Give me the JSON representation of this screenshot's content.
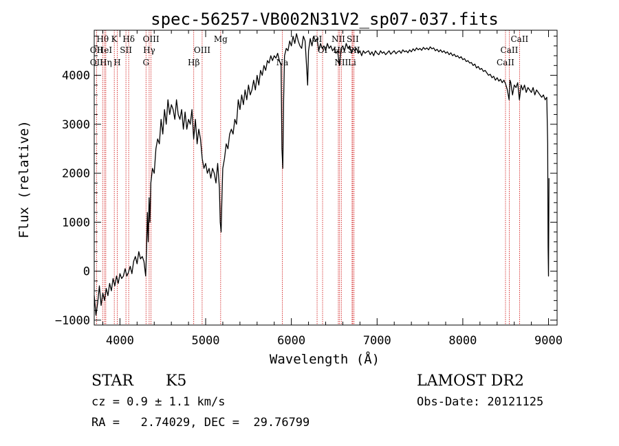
{
  "chart_data": {
    "type": "line",
    "title": "spec-56257-VB002N31V2_sp07-037.fits",
    "xlabel": "Wavelength (Å)",
    "ylabel": "Flux (relative)",
    "xlim": [
      3700,
      9100
    ],
    "ylim": [
      -1100,
      4920
    ],
    "x_ticks": [
      4000,
      5000,
      6000,
      7000,
      8000,
      9000
    ],
    "y_ticks": [
      -1000,
      0,
      1000,
      2000,
      3000,
      4000
    ],
    "series": [
      {
        "name": "flux",
        "color": "#000000",
        "points": [
          [
            3700,
            -500
          ],
          [
            3720,
            -900
          ],
          [
            3740,
            -650
          ],
          [
            3760,
            -300
          ],
          [
            3780,
            -700
          ],
          [
            3800,
            -450
          ],
          [
            3820,
            -600
          ],
          [
            3840,
            -350
          ],
          [
            3860,
            -500
          ],
          [
            3880,
            -250
          ],
          [
            3900,
            -400
          ],
          [
            3920,
            -150
          ],
          [
            3940,
            -300
          ],
          [
            3960,
            -100
          ],
          [
            3980,
            -250
          ],
          [
            4000,
            -50
          ],
          [
            4020,
            -150
          ],
          [
            4040,
            -100
          ],
          [
            4060,
            50
          ],
          [
            4080,
            -100
          ],
          [
            4100,
            -20
          ],
          [
            4120,
            100
          ],
          [
            4140,
            -50
          ],
          [
            4160,
            200
          ],
          [
            4180,
            300
          ],
          [
            4200,
            150
          ],
          [
            4220,
            400
          ],
          [
            4240,
            250
          ],
          [
            4260,
            300
          ],
          [
            4280,
            200
          ],
          [
            4300,
            -100
          ],
          [
            4310,
            400
          ],
          [
            4320,
            1200
          ],
          [
            4330,
            600
          ],
          [
            4340,
            1500
          ],
          [
            4350,
            1000
          ],
          [
            4360,
            1800
          ],
          [
            4380,
            2100
          ],
          [
            4400,
            2000
          ],
          [
            4420,
            2500
          ],
          [
            4440,
            2700
          ],
          [
            4460,
            2600
          ],
          [
            4480,
            3100
          ],
          [
            4500,
            2800
          ],
          [
            4520,
            3300
          ],
          [
            4540,
            3000
          ],
          [
            4560,
            3500
          ],
          [
            4580,
            3200
          ],
          [
            4600,
            3400
          ],
          [
            4620,
            3300
          ],
          [
            4640,
            3100
          ],
          [
            4660,
            3500
          ],
          [
            4680,
            3200
          ],
          [
            4700,
            3100
          ],
          [
            4720,
            3300
          ],
          [
            4740,
            2900
          ],
          [
            4760,
            3250
          ],
          [
            4780,
            2900
          ],
          [
            4800,
            3100
          ],
          [
            4820,
            3000
          ],
          [
            4840,
            3300
          ],
          [
            4860,
            2700
          ],
          [
            4880,
            3100
          ],
          [
            4900,
            2600
          ],
          [
            4920,
            2900
          ],
          [
            4940,
            2700
          ],
          [
            4960,
            2300
          ],
          [
            4980,
            2100
          ],
          [
            5000,
            2200
          ],
          [
            5020,
            2000
          ],
          [
            5040,
            2100
          ],
          [
            5060,
            1900
          ],
          [
            5080,
            2100
          ],
          [
            5100,
            2000
          ],
          [
            5120,
            1800
          ],
          [
            5140,
            2200
          ],
          [
            5160,
            1700
          ],
          [
            5170,
            1000
          ],
          [
            5180,
            800
          ],
          [
            5190,
            1500
          ],
          [
            5200,
            2100
          ],
          [
            5220,
            2300
          ],
          [
            5240,
            2600
          ],
          [
            5260,
            2500
          ],
          [
            5280,
            2800
          ],
          [
            5300,
            2900
          ],
          [
            5320,
            2800
          ],
          [
            5340,
            3100
          ],
          [
            5360,
            3000
          ],
          [
            5380,
            3500
          ],
          [
            5400,
            3300
          ],
          [
            5420,
            3600
          ],
          [
            5440,
            3400
          ],
          [
            5460,
            3700
          ],
          [
            5480,
            3500
          ],
          [
            5500,
            3800
          ],
          [
            5520,
            3600
          ],
          [
            5540,
            3700
          ],
          [
            5560,
            3900
          ],
          [
            5580,
            3700
          ],
          [
            5600,
            4000
          ],
          [
            5620,
            3800
          ],
          [
            5640,
            4100
          ],
          [
            5660,
            4000
          ],
          [
            5680,
            4200
          ],
          [
            5700,
            4100
          ],
          [
            5720,
            4300
          ],
          [
            5740,
            4250
          ],
          [
            5760,
            4400
          ],
          [
            5780,
            4300
          ],
          [
            5800,
            4400
          ],
          [
            5820,
            4350
          ],
          [
            5840,
            4450
          ],
          [
            5860,
            4300
          ],
          [
            5880,
            4200
          ],
          [
            5890,
            2500
          ],
          [
            5900,
            2100
          ],
          [
            5910,
            3500
          ],
          [
            5920,
            4400
          ],
          [
            5940,
            4550
          ],
          [
            5960,
            4500
          ],
          [
            5980,
            4700
          ],
          [
            6000,
            4600
          ],
          [
            6020,
            4800
          ],
          [
            6040,
            4650
          ],
          [
            6060,
            4850
          ],
          [
            6080,
            4700
          ],
          [
            6100,
            4600
          ],
          [
            6120,
            4550
          ],
          [
            6140,
            4800
          ],
          [
            6160,
            4700
          ],
          [
            6180,
            4100
          ],
          [
            6190,
            3800
          ],
          [
            6200,
            4500
          ],
          [
            6220,
            4750
          ],
          [
            6240,
            4600
          ],
          [
            6260,
            4800
          ],
          [
            6280,
            4700
          ],
          [
            6300,
            4750
          ],
          [
            6320,
            4500
          ],
          [
            6340,
            4650
          ],
          [
            6360,
            4550
          ],
          [
            6380,
            4600
          ],
          [
            6400,
            4500
          ],
          [
            6420,
            4650
          ],
          [
            6440,
            4550
          ],
          [
            6460,
            4600
          ],
          [
            6480,
            4500
          ],
          [
            6500,
            4550
          ],
          [
            6520,
            4450
          ],
          [
            6540,
            4500
          ],
          [
            6560,
            4200
          ],
          [
            6580,
            4550
          ],
          [
            6600,
            4600
          ],
          [
            6620,
            4500
          ],
          [
            6640,
            4650
          ],
          [
            6660,
            4550
          ],
          [
            6680,
            4600
          ],
          [
            6700,
            4450
          ],
          [
            6720,
            4550
          ],
          [
            6740,
            4500
          ],
          [
            6760,
            4550
          ],
          [
            6780,
            4450
          ],
          [
            6800,
            4500
          ],
          [
            6820,
            4400
          ],
          [
            6840,
            4500
          ],
          [
            6860,
            4450
          ],
          [
            6880,
            4480
          ],
          [
            6900,
            4500
          ],
          [
            6920,
            4420
          ],
          [
            6940,
            4480
          ],
          [
            6960,
            4400
          ],
          [
            6980,
            4500
          ],
          [
            7000,
            4450
          ],
          [
            7020,
            4420
          ],
          [
            7040,
            4500
          ],
          [
            7060,
            4450
          ],
          [
            7080,
            4480
          ],
          [
            7100,
            4420
          ],
          [
            7120,
            4460
          ],
          [
            7140,
            4500
          ],
          [
            7160,
            4430
          ],
          [
            7180,
            4470
          ],
          [
            7200,
            4500
          ],
          [
            7220,
            4440
          ],
          [
            7240,
            4480
          ],
          [
            7260,
            4500
          ],
          [
            7280,
            4450
          ],
          [
            7300,
            4520
          ],
          [
            7320,
            4480
          ],
          [
            7340,
            4500
          ],
          [
            7360,
            4460
          ],
          [
            7380,
            4520
          ],
          [
            7400,
            4480
          ],
          [
            7420,
            4540
          ],
          [
            7440,
            4500
          ],
          [
            7460,
            4560
          ],
          [
            7480,
            4520
          ],
          [
            7500,
            4550
          ],
          [
            7520,
            4510
          ],
          [
            7540,
            4570
          ],
          [
            7560,
            4530
          ],
          [
            7580,
            4560
          ],
          [
            7600,
            4520
          ],
          [
            7620,
            4580
          ],
          [
            7640,
            4540
          ],
          [
            7660,
            4560
          ],
          [
            7680,
            4500
          ],
          [
            7700,
            4530
          ],
          [
            7720,
            4480
          ],
          [
            7740,
            4520
          ],
          [
            7760,
            4470
          ],
          [
            7780,
            4500
          ],
          [
            7800,
            4450
          ],
          [
            7820,
            4480
          ],
          [
            7840,
            4420
          ],
          [
            7860,
            4460
          ],
          [
            7880,
            4400
          ],
          [
            7900,
            4430
          ],
          [
            7920,
            4380
          ],
          [
            7940,
            4400
          ],
          [
            7960,
            4350
          ],
          [
            7980,
            4380
          ],
          [
            8000,
            4320
          ],
          [
            8020,
            4340
          ],
          [
            8040,
            4280
          ],
          [
            8060,
            4300
          ],
          [
            8080,
            4250
          ],
          [
            8100,
            4260
          ],
          [
            8120,
            4200
          ],
          [
            8140,
            4230
          ],
          [
            8160,
            4150
          ],
          [
            8180,
            4180
          ],
          [
            8200,
            4120
          ],
          [
            8220,
            4140
          ],
          [
            8240,
            4080
          ],
          [
            8260,
            4100
          ],
          [
            8280,
            4050
          ],
          [
            8300,
            4000
          ],
          [
            8320,
            4020
          ],
          [
            8340,
            3950
          ],
          [
            8360,
            3980
          ],
          [
            8380,
            3900
          ],
          [
            8400,
            3950
          ],
          [
            8420,
            3880
          ],
          [
            8440,
            3920
          ],
          [
            8460,
            3850
          ],
          [
            8480,
            3900
          ],
          [
            8500,
            3820
          ],
          [
            8520,
            3700
          ],
          [
            8540,
            3500
          ],
          [
            8550,
            3900
          ],
          [
            8560,
            3850
          ],
          [
            8580,
            3600
          ],
          [
            8600,
            3800
          ],
          [
            8620,
            3750
          ],
          [
            8640,
            3850
          ],
          [
            8660,
            3500
          ],
          [
            8680,
            3800
          ],
          [
            8700,
            3700
          ],
          [
            8720,
            3800
          ],
          [
            8740,
            3650
          ],
          [
            8760,
            3750
          ],
          [
            8780,
            3700
          ],
          [
            8800,
            3650
          ],
          [
            8820,
            3750
          ],
          [
            8840,
            3600
          ],
          [
            8860,
            3700
          ],
          [
            8880,
            3650
          ],
          [
            8900,
            3600
          ],
          [
            8920,
            3550
          ],
          [
            8940,
            3600
          ],
          [
            8960,
            3500
          ],
          [
            8980,
            3550
          ],
          [
            8990,
            2600
          ],
          [
            8995,
            500
          ],
          [
            9000,
            -100
          ],
          [
            9005,
            1900
          ]
        ]
      }
    ],
    "line_markers": [
      {
        "label": "Hθ",
        "wavelength": 3798,
        "row": 0
      },
      {
        "label": "OII",
        "wavelength": 3727,
        "row": 1
      },
      {
        "label": "OII",
        "wavelength": 3727,
        "row": 2
      },
      {
        "label": "HeI",
        "wavelength": 3820,
        "row": 1
      },
      {
        "label": "Hη",
        "wavelength": 3835,
        "row": 2
      },
      {
        "label": "K",
        "wavelength": 3934,
        "row": 0
      },
      {
        "label": "SII",
        "wavelength": 4070,
        "row": 1
      },
      {
        "label": "H",
        "wavelength": 3969,
        "row": 2
      },
      {
        "label": "Hδ",
        "wavelength": 4102,
        "row": 0
      },
      {
        "label": "OIII",
        "wavelength": 4363,
        "row": 0
      },
      {
        "label": "Hγ",
        "wavelength": 4341,
        "row": 1
      },
      {
        "label": "G",
        "wavelength": 4304,
        "row": 2
      },
      {
        "label": "OIII",
        "wavelength": 4959,
        "row": 1
      },
      {
        "label": "Hβ",
        "wavelength": 4861,
        "row": 2
      },
      {
        "label": "Mg",
        "wavelength": 5175,
        "row": 0
      },
      {
        "label": "Na",
        "wavelength": 5894,
        "row": 2
      },
      {
        "label": "OI",
        "wavelength": 6300,
        "row": 0
      },
      {
        "label": "OI",
        "wavelength": 6364,
        "row": 1
      },
      {
        "label": "NII",
        "wavelength": 6548,
        "row": 0
      },
      {
        "label": "Hα",
        "wavelength": 6563,
        "row": 1
      },
      {
        "label": "NII",
        "wavelength": 6583,
        "row": 2
      },
      {
        "label": "SII",
        "wavelength": 6716,
        "row": 0
      },
      {
        "label": "SII",
        "wavelength": 6731,
        "row": 1
      },
      {
        "label": "Li",
        "wavelength": 6708,
        "row": 2
      },
      {
        "label": "CaII",
        "wavelength": 8662,
        "row": 0
      },
      {
        "label": "CaII",
        "wavelength": 8542,
        "row": 1
      },
      {
        "label": "CaII",
        "wavelength": 8498,
        "row": 2
      }
    ]
  },
  "info": {
    "classification": "STAR",
    "subclass": "K5",
    "cz": "cz = 0.9 ± 1.1 km/s",
    "coords": "RA =   2.74029, DEC =  29.76799",
    "survey": "LAMOST DR2",
    "obs_date": "Obs-Date: 20121125"
  },
  "colors": {
    "line": "#000000",
    "marker": "#cc0000"
  }
}
